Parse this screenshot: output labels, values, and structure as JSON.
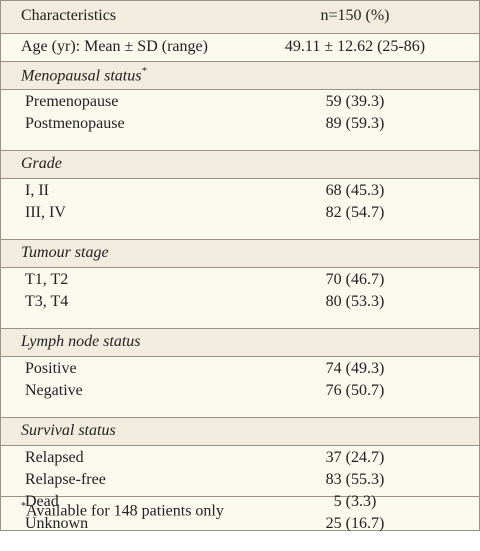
{
  "header": {
    "left": "Characteristics",
    "right": "n=150 (%)"
  },
  "age_row": {
    "label": "Age (yr): Mean ± SD (range)",
    "value": "49.11 ± 12.62 (25-86)"
  },
  "sections": [
    {
      "title": "Menopausal status",
      "title_mark": "*",
      "rows": [
        [
          "Premenopause",
          "59 (39.3)"
        ],
        [
          "Postmenopause",
          "89 (59.3)"
        ]
      ]
    },
    {
      "title": "Grade",
      "rows": [
        [
          "I, II",
          "68 (45.3)"
        ],
        [
          "III, IV",
          "82 (54.7)"
        ]
      ]
    },
    {
      "title": "Tumour stage",
      "rows": [
        [
          "T1, T2",
          "70 (46.7)"
        ],
        [
          "T3, T4",
          "80 (53.3)"
        ]
      ]
    },
    {
      "title": "Lymph node status",
      "rows": [
        [
          "Positive",
          "74 (49.3)"
        ],
        [
          "Negative",
          "76 (50.7)"
        ]
      ]
    },
    {
      "title": "Survival status",
      "rows": [
        [
          "Relapsed",
          "37 (24.7)"
        ],
        [
          "Relapse-free",
          "83 (55.3)"
        ],
        [
          "Dead",
          "5 (3.3)"
        ],
        [
          "Unknown",
          "25 (16.7)"
        ]
      ]
    }
  ],
  "footnote": {
    "mark": "*",
    "text": "Available for 148 patients only"
  }
}
